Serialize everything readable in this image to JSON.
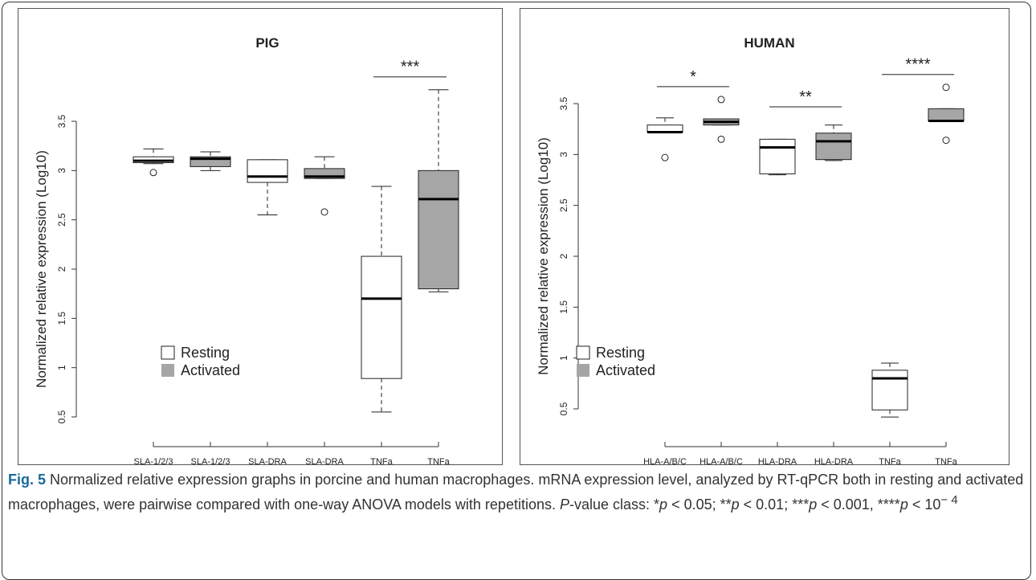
{
  "chart_data": [
    {
      "type": "box",
      "title": "PIG",
      "y_label": "Normalized relative expression (Log10)",
      "categories": [
        "SLA-1/2/3",
        "SLA-1/2/3",
        "SLA-DRA",
        "SLA-DRA",
        "TNFa",
        "TNFa"
      ],
      "ylim": [
        0.5,
        3.5
      ],
      "yticks": [
        0.5,
        1.0,
        1.5,
        2.0,
        2.5,
        3.0,
        3.5
      ],
      "legend": "bottom-left",
      "series": [
        {
          "name": "Resting",
          "color": "#ffffff",
          "min": [
            3.07,
            null,
            2.55,
            null,
            0.55,
            null
          ],
          "q1": [
            3.08,
            null,
            2.88,
            null,
            0.89,
            null
          ],
          "median": [
            3.1,
            null,
            2.94,
            null,
            1.7,
            null
          ],
          "q3": [
            3.14,
            null,
            3.11,
            null,
            2.13,
            null
          ],
          "max": [
            3.22,
            null,
            3.11,
            null,
            2.84,
            null
          ],
          "outliers": [
            [
              2.98
            ],
            null,
            [],
            null,
            [],
            null
          ]
        },
        {
          "name": "Activated",
          "color": "#a6a6a6",
          "min": [
            null,
            3.0,
            null,
            2.92,
            null,
            1.77
          ],
          "q1": [
            null,
            3.04,
            null,
            2.92,
            null,
            1.8
          ],
          "median": [
            null,
            3.12,
            null,
            2.94,
            null,
            2.71
          ],
          "q3": [
            null,
            3.14,
            null,
            3.02,
            null,
            3.0
          ],
          "max": [
            null,
            3.19,
            null,
            3.14,
            null,
            3.82
          ],
          "outliers": [
            null,
            [],
            null,
            [
              2.58
            ],
            null,
            []
          ]
        }
      ],
      "annotations": [
        null,
        null,
        "***"
      ]
    },
    {
      "type": "box",
      "title": "HUMAN",
      "y_label": "Normalized relative expression (Log10)",
      "categories": [
        "HLA-A/B/C",
        "HLA-A/B/C",
        "HLA-DRA",
        "HLA-DRA",
        "TNFa",
        "TNFa"
      ],
      "ylim": [
        0.5,
        3.5
      ],
      "yticks": [
        0.5,
        1.0,
        1.5,
        2.0,
        2.5,
        3.0,
        3.5
      ],
      "legend": "bottom-left",
      "series": [
        {
          "name": "Resting",
          "color": "#ffffff",
          "min": [
            3.22,
            null,
            2.8,
            null,
            0.42,
            null
          ],
          "q1": [
            3.22,
            null,
            2.81,
            null,
            0.49,
            null
          ],
          "median": [
            3.22,
            null,
            3.07,
            null,
            0.8,
            null
          ],
          "q3": [
            3.29,
            null,
            3.15,
            null,
            0.88,
            null
          ],
          "max": [
            3.36,
            null,
            3.15,
            null,
            0.95,
            null
          ],
          "outliers": [
            [
              2.97
            ],
            null,
            [],
            null,
            [],
            null
          ]
        },
        {
          "name": "Activated",
          "color": "#a6a6a6",
          "min": [
            null,
            3.29,
            null,
            2.94,
            null,
            3.33
          ],
          "q1": [
            null,
            3.29,
            null,
            2.95,
            null,
            3.33
          ],
          "median": [
            null,
            3.32,
            null,
            3.13,
            null,
            3.33
          ],
          "q3": [
            null,
            3.35,
            null,
            3.21,
            null,
            3.45
          ],
          "max": [
            null,
            3.35,
            null,
            3.29,
            null,
            3.45
          ],
          "outliers": [
            null,
            [
              3.54,
              3.15
            ],
            null,
            [],
            null,
            [
              3.66,
              3.14
            ]
          ]
        }
      ],
      "annotations": [
        "*",
        "**",
        "****"
      ]
    }
  ],
  "caption": {
    "label": "Fig. 5",
    "runs": [
      {
        "text": " Normalized relative expression graphs in porcine and human macrophages. mRNA expression level, analyzed by RT-qPCR both in resting and activated macrophages, were pairwise compared with one-way ANOVA models with repetitions. ",
        "style": "normal"
      },
      {
        "text": "P",
        "style": "italic"
      },
      {
        "text": "-value class: *",
        "style": "normal"
      },
      {
        "text": "p",
        "style": "italic"
      },
      {
        "text": " < 0.05; **",
        "style": "normal"
      },
      {
        "text": "p",
        "style": "italic"
      },
      {
        "text": " < 0.01; ***",
        "style": "normal"
      },
      {
        "text": "p",
        "style": "italic"
      },
      {
        "text": " < 0.001, ****",
        "style": "normal"
      },
      {
        "text": "p",
        "style": "italic"
      },
      {
        "text": " < 10",
        "style": "normal"
      },
      {
        "text": "− 4",
        "style": "sup"
      }
    ]
  }
}
